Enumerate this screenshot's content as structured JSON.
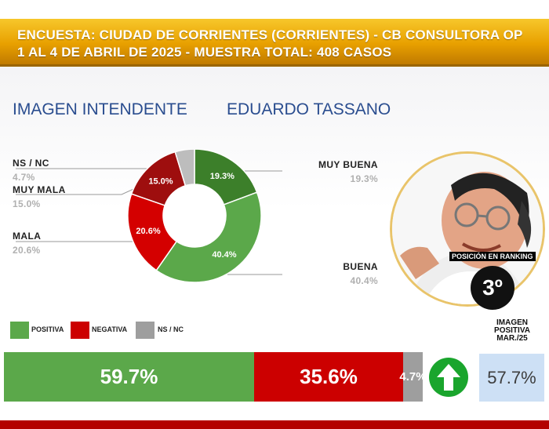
{
  "banner": {
    "line1": "ENCUESTA: CIUDAD DE CORRIENTES (CORRIENTES) - CB CONSULTORA OP",
    "line2": "1 AL 4 DE ABRIL DE 2025 - MUESTRA TOTAL: 408 CASOS"
  },
  "heading": {
    "left": "IMAGEN INTENDENTE",
    "right": "EDUARDO TASSANO"
  },
  "chart_data": [
    {
      "type": "pie",
      "categories": [
        "MUY BUENA",
        "BUENA",
        "MALA",
        "MUY MALA",
        "NS / NC"
      ],
      "values": [
        19.3,
        40.4,
        20.6,
        15.0,
        4.7
      ],
      "value_labels": [
        "19.3%",
        "40.4%",
        "20.6%",
        "15.0%",
        "4.7%"
      ],
      "colors": [
        "#3c7f2a",
        "#5ba84a",
        "#d40000",
        "#9e0e0e",
        "#bdbdbd"
      ],
      "donut": true
    },
    {
      "type": "bar",
      "stacked": true,
      "orientation": "horizontal",
      "categories": [
        "POSITIVA",
        "NEGATIVA",
        "NS / NC"
      ],
      "values": [
        59.7,
        35.6,
        4.7
      ],
      "value_labels": [
        "59.7%",
        "35.6%",
        "4.7%"
      ],
      "colors": [
        "#5ba84a",
        "#cc0000",
        "#9e9e9e"
      ],
      "legend": [
        "POSITIVA",
        "NEGATIVA",
        "NS / NC"
      ],
      "legend_placement": "top-left"
    }
  ],
  "previous": {
    "title_lines": [
      "IMAGEN",
      "POSITIVA",
      "MAR./25"
    ],
    "value": "57.7%",
    "trend_icon": "arrow-up-icon"
  },
  "ranking": {
    "label": "POSICIÓN EN RANKING",
    "value": "3º"
  }
}
